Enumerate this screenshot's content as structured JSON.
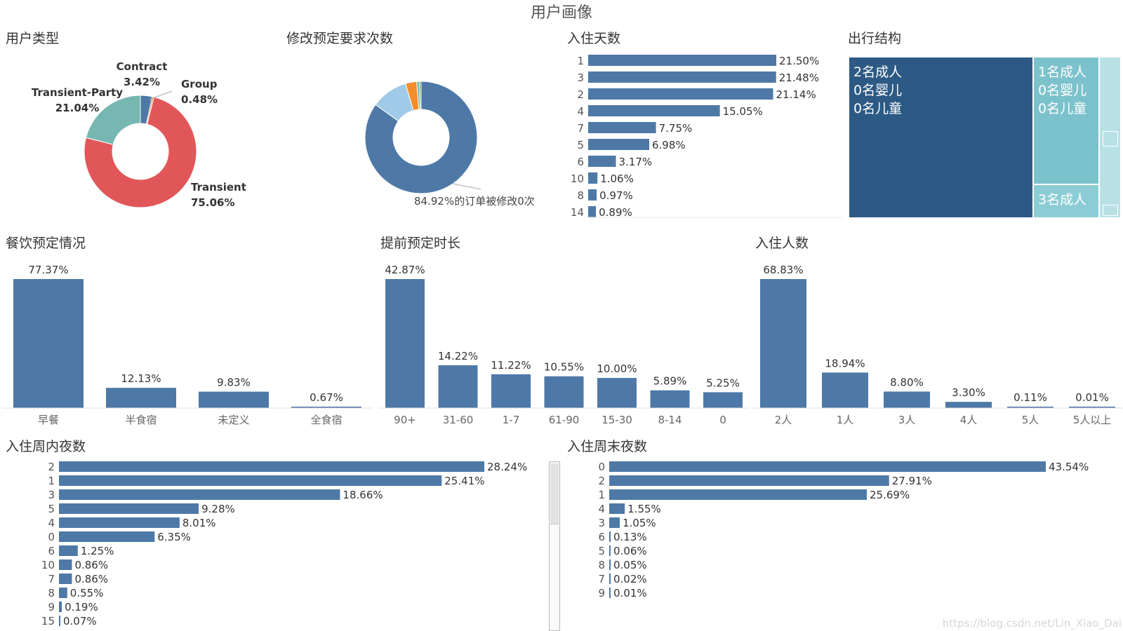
{
  "page_title": "用户画像",
  "sections": {
    "user_type": "用户类型",
    "modify": "修改预定要求次数",
    "stay_days": "入住天数",
    "travel": "出行结构",
    "meal": "餐饮预定情况",
    "lead": "提前预定时长",
    "guests": "入住人数",
    "weekday": "入住周内夜数",
    "weekend": "入住周末夜数"
  },
  "colors": {
    "bar": "#4e79a7",
    "transient": "#e15759",
    "transient_party": "#76b7b2",
    "group": "#f28e2b",
    "contract": "#4e79a7",
    "light_blue": "#a0cbe8"
  },
  "watermark": "https://blog.csdn.net/Lin_Xiao_Dai",
  "chart_data": [
    {
      "id": "user_type",
      "type": "pie",
      "title": "用户类型",
      "slices": [
        {
          "label": "Contract",
          "value": 3.42,
          "text": "3.42%",
          "color": "#4e79a7"
        },
        {
          "label": "Group",
          "value": 0.48,
          "text": "0.48%",
          "color": "#f28e2b"
        },
        {
          "label": "Transient",
          "value": 75.06,
          "text": "75.06%",
          "color": "#e15759"
        },
        {
          "label": "Transient-Party",
          "value": 21.04,
          "text": "21.04%",
          "color": "#76b7b2"
        }
      ]
    },
    {
      "id": "modify",
      "type": "pie",
      "title": "修改预定要求次数",
      "annotation": "84.92%的订单被修改0次",
      "slices": [
        {
          "value": 84.92,
          "color": "#4e79a7"
        },
        {
          "value": 10.6,
          "color": "#a0cbe8"
        },
        {
          "value": 3.2,
          "color": "#f28e2b"
        },
        {
          "value": 0.8,
          "color": "#76b7b2"
        },
        {
          "value": 0.48,
          "color": "#59a14f"
        }
      ]
    },
    {
      "id": "stay_days",
      "type": "bar",
      "orientation": "horizontal",
      "title": "入住天数",
      "categories": [
        "1",
        "3",
        "2",
        "4",
        "7",
        "5",
        "6",
        "10",
        "8",
        "14"
      ],
      "values": [
        21.5,
        21.48,
        21.14,
        15.05,
        7.75,
        6.98,
        3.17,
        1.06,
        0.97,
        0.89
      ],
      "labels": [
        "21.50%",
        "21.48%",
        "21.14%",
        "15.05%",
        "7.75%",
        "6.98%",
        "3.17%",
        "1.06%",
        "0.97%",
        "0.89%"
      ]
    },
    {
      "id": "travel",
      "type": "treemap",
      "title": "出行结构",
      "items": [
        {
          "label": "2名成人\n0名婴儿\n0名儿童"
        },
        {
          "label": "1名成人\n0名婴儿\n0名儿童"
        },
        {
          "label": "3名成人"
        }
      ]
    },
    {
      "id": "meal",
      "type": "bar",
      "title": "餐饮预定情况",
      "categories": [
        "早餐",
        "半食宿",
        "未定义",
        "全食宿"
      ],
      "values": [
        77.37,
        12.13,
        9.83,
        0.67
      ],
      "labels": [
        "77.37%",
        "12.13%",
        "9.83%",
        "0.67%"
      ]
    },
    {
      "id": "lead",
      "type": "bar",
      "title": "提前预定时长",
      "categories": [
        "90+",
        "31-60",
        "1-7",
        "61-90",
        "15-30",
        "8-14",
        "0"
      ],
      "values": [
        42.87,
        14.22,
        11.22,
        10.55,
        10.0,
        5.89,
        5.25
      ],
      "labels": [
        "42.87%",
        "14.22%",
        "11.22%",
        "10.55%",
        "10.00%",
        "5.89%",
        "5.25%"
      ]
    },
    {
      "id": "guests",
      "type": "bar",
      "title": "入住人数",
      "categories": [
        "2人",
        "1人",
        "3人",
        "4人",
        "5人",
        "5人以上"
      ],
      "values": [
        68.83,
        18.94,
        8.8,
        3.3,
        0.11,
        0.01
      ],
      "labels": [
        "68.83%",
        "18.94%",
        "8.80%",
        "3.30%",
        "0.11%",
        "0.01%"
      ]
    },
    {
      "id": "weekday",
      "type": "bar",
      "orientation": "horizontal",
      "title": "入住周内夜数",
      "categories": [
        "2",
        "1",
        "3",
        "5",
        "4",
        "0",
        "6",
        "10",
        "7",
        "8",
        "9",
        "15"
      ],
      "values": [
        28.24,
        25.41,
        18.66,
        9.28,
        8.01,
        6.35,
        1.25,
        0.86,
        0.86,
        0.55,
        0.19,
        0.07
      ],
      "labels": [
        "28.24%",
        "25.41%",
        "18.66%",
        "9.28%",
        "8.01%",
        "6.35%",
        "1.25%",
        "0.86%",
        "0.86%",
        "0.55%",
        "0.19%",
        "0.07%"
      ]
    },
    {
      "id": "weekend",
      "type": "bar",
      "orientation": "horizontal",
      "title": "入住周末夜数",
      "categories": [
        "0",
        "2",
        "1",
        "4",
        "3",
        "6",
        "5",
        "8",
        "7",
        "9"
      ],
      "values": [
        43.54,
        27.91,
        25.69,
        1.55,
        1.05,
        0.13,
        0.06,
        0.05,
        0.02,
        0.01
      ],
      "labels": [
        "43.54%",
        "27.91%",
        "25.69%",
        "1.55%",
        "1.05%",
        "0.13%",
        "0.06%",
        "0.05%",
        "0.02%",
        "0.01%"
      ]
    }
  ]
}
